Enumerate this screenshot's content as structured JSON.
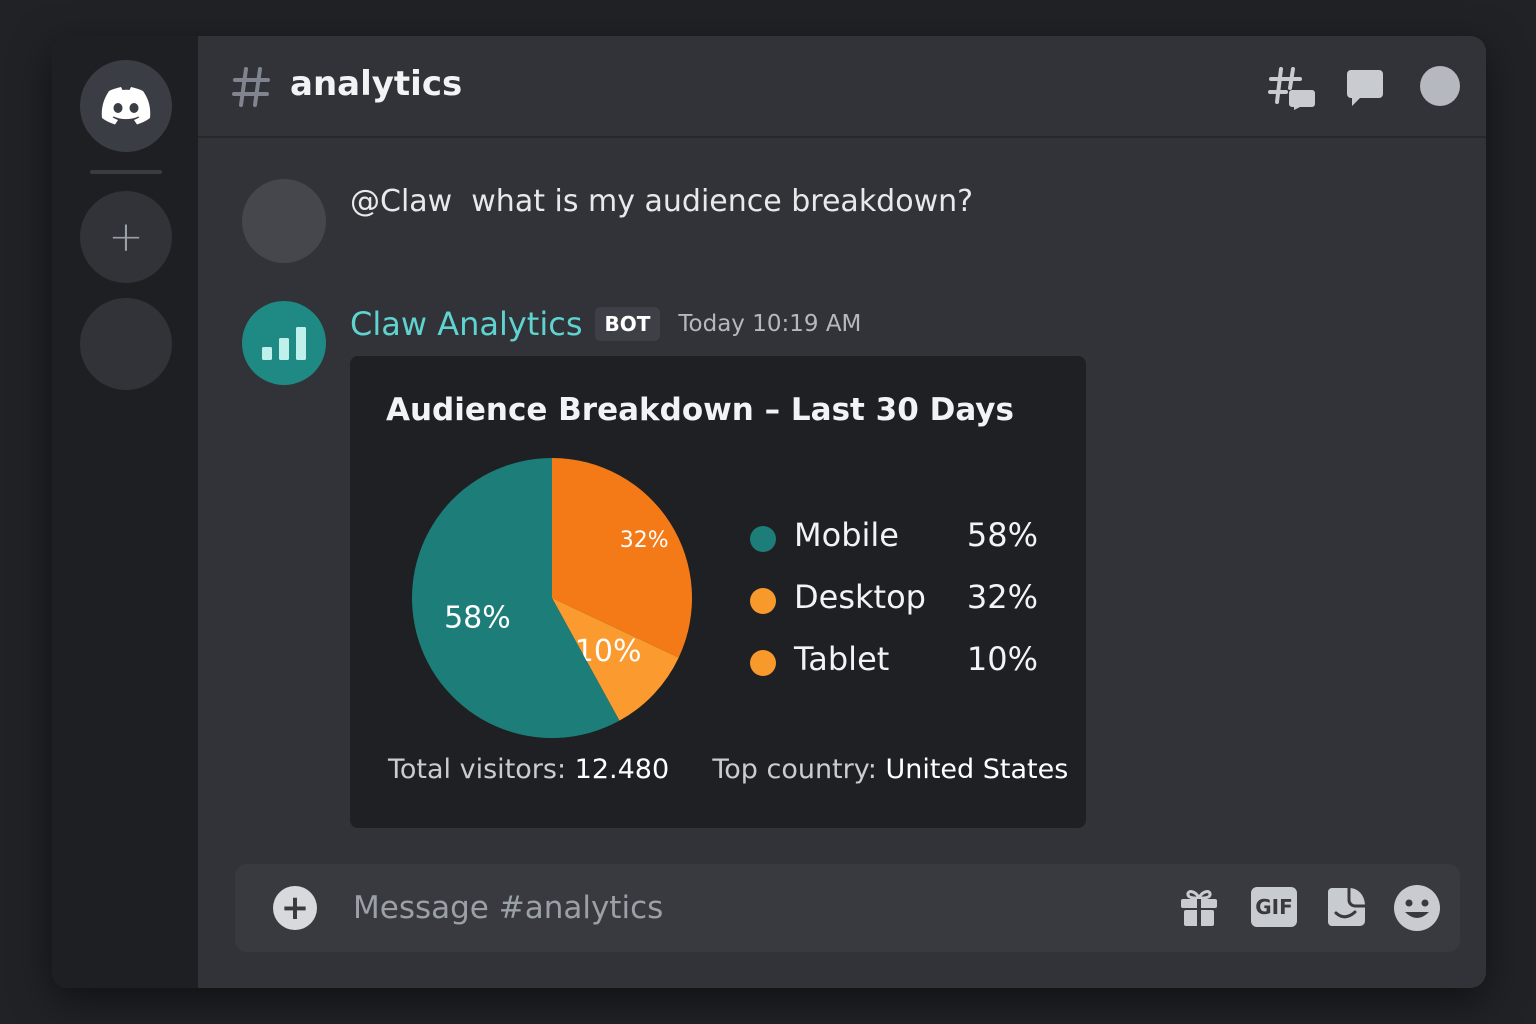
{
  "header": {
    "channel_name": "analytics"
  },
  "messages": {
    "user": {
      "text": "@Claw  what is my audience breakdown?"
    },
    "bot": {
      "name": "Claw Analytics",
      "badge": "BOT",
      "timestamp": "Today 10:19 AM"
    }
  },
  "embed": {
    "title": "Audience Breakdown – Last 30 Days",
    "footer": {
      "visitors_label": "Total visitors:",
      "visitors_value": "12.480",
      "country_label": "Top country:",
      "country_value": "United States"
    }
  },
  "chart_data": {
    "type": "pie",
    "categories": [
      "Mobile",
      "Desktop",
      "Tablet"
    ],
    "values": [
      58,
      32,
      10
    ],
    "labels": [
      "58%",
      "32%",
      "10%"
    ],
    "colors": [
      "#1c7d79",
      "#f47a18",
      "#fb9a2e"
    ],
    "legend_dot_colors": [
      "#1c7d79",
      "#f79a2b",
      "#f79a2b"
    ],
    "legend_placement": "right"
  },
  "composer": {
    "placeholder": "Message #analytics",
    "gif_label": "GIF"
  },
  "icons": {
    "server_home": "discord-logo-icon",
    "rail_add": "plus-icon",
    "channel": "hash-icon",
    "threads": "threads-icon",
    "chat": "chat-bubble-icon",
    "profile": "profile-circle-icon",
    "bot_avatar": "bar-chart-icon",
    "attach": "plus-circle-icon",
    "gift": "gift-icon",
    "gif": "gif-icon",
    "sticker": "sticker-icon",
    "emoji": "emoji-icon"
  }
}
